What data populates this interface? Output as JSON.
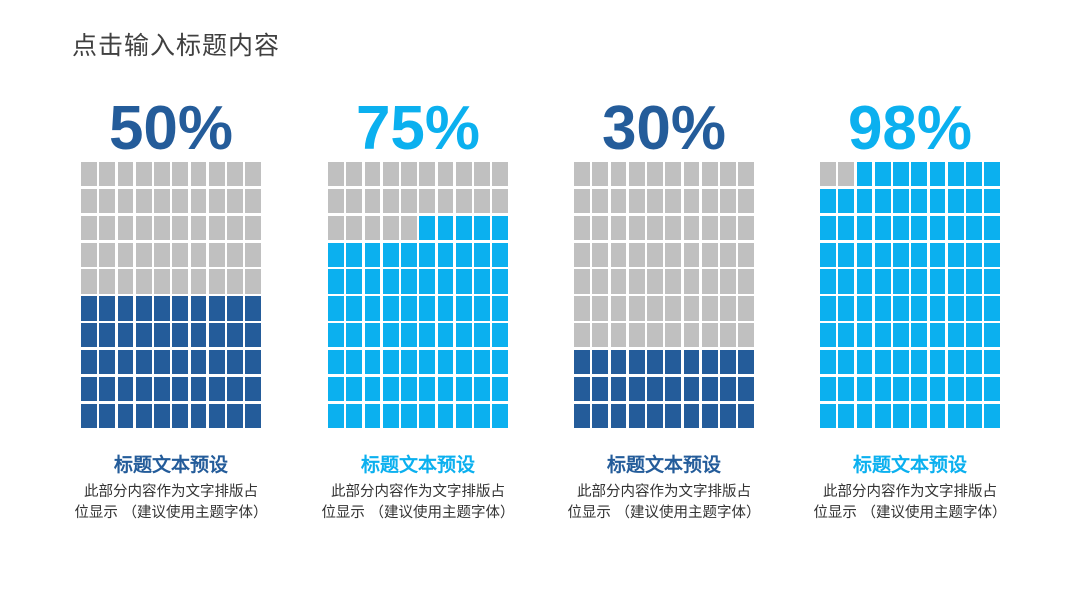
{
  "title": "点击输入标题内容",
  "colors": {
    "grey": "#c0c0c0",
    "dark_blue": "#245c9a",
    "light_blue": "#0bb0ef"
  },
  "columns": [
    {
      "percent_label": "50%",
      "percent": 50,
      "color": "#245c9a",
      "heading": "标题文本预设",
      "desc_line1": "此部分内容作为文字排版占",
      "desc_line2": "位显示 （建议使用主题字体）"
    },
    {
      "percent_label": "75%",
      "percent": 75,
      "color": "#0bb0ef",
      "heading": "标题文本预设",
      "desc_line1": "此部分内容作为文字排版占",
      "desc_line2": "位显示 （建议使用主题字体）"
    },
    {
      "percent_label": "30%",
      "percent": 30,
      "color": "#245c9a",
      "heading": "标题文本预设",
      "desc_line1": "此部分内容作为文字排版占",
      "desc_line2": "位显示 （建议使用主题字体）"
    },
    {
      "percent_label": "98%",
      "percent": 98,
      "color": "#0bb0ef",
      "heading": "标题文本预设",
      "desc_line1": "此部分内容作为文字排版占",
      "desc_line2": "位显示 （建议使用主题字体）"
    }
  ]
}
